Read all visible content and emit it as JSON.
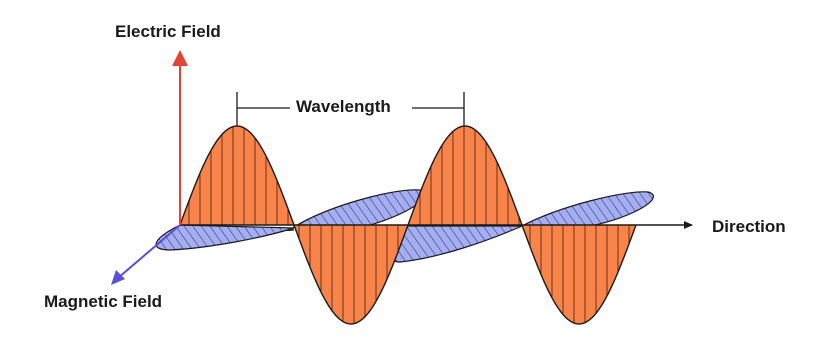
{
  "labels": {
    "electric_field": "Electric Field",
    "magnetic_field": "Magnetic Field",
    "direction": "Direction",
    "wavelength": "Wavelength"
  },
  "colors": {
    "electric_fill": "#f9844a",
    "electric_arrow": "#e0453a",
    "magnetic_fill": "#a5aef0",
    "magnetic_arrow": "#5a4fd6",
    "outline": "#1a1a1a"
  }
}
